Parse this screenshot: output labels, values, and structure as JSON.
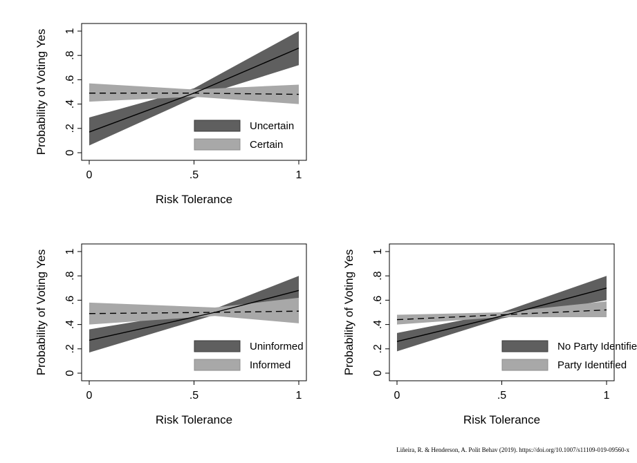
{
  "colors": {
    "dark_band": "#5f5f5f",
    "light_band": "#a8a8a8",
    "line": "#000000",
    "frame": "#000000"
  },
  "credit": "Liñeira, R. & Henderson, A. Polit Behav (2019). https://doi.org/10.1007/s11109-019-09560-x",
  "chart_data": [
    {
      "type": "line",
      "xlabel": "Risk Tolerance",
      "ylabel": "Probability of Voting Yes",
      "xlim": [
        0,
        1
      ],
      "ylim": [
        0,
        1
      ],
      "xticks": [
        "0",
        ".5",
        "1"
      ],
      "yticks": [
        "0",
        ".2",
        ".4",
        ".6",
        ".8",
        "1"
      ],
      "legend_position": "bottom-right",
      "series": [
        {
          "name": "Uncertain",
          "style": "solid",
          "band": "dark",
          "x": [
            0,
            0.5,
            1
          ],
          "y": [
            0.17,
            0.49,
            0.86
          ],
          "lower": [
            0.06,
            0.45,
            0.72
          ],
          "upper": [
            0.29,
            0.53,
            1.0
          ]
        },
        {
          "name": "Certain",
          "style": "dashed",
          "band": "light",
          "x": [
            0,
            0.5,
            1
          ],
          "y": [
            0.49,
            0.49,
            0.48
          ],
          "lower": [
            0.42,
            0.46,
            0.4
          ],
          "upper": [
            0.57,
            0.52,
            0.56
          ]
        }
      ]
    },
    {
      "type": "line",
      "xlabel": "Risk Tolerance",
      "ylabel": "Probability of Voting Yes",
      "xlim": [
        0,
        1
      ],
      "ylim": [
        0,
        1
      ],
      "xticks": [
        "0",
        ".5",
        "1"
      ],
      "yticks": [
        "0",
        ".2",
        ".4",
        ".6",
        ".8",
        "1"
      ],
      "legend_position": "bottom-right",
      "series": [
        {
          "name": "Uninformed",
          "style": "solid",
          "band": "dark",
          "x": [
            0,
            0.6,
            1
          ],
          "y": [
            0.27,
            0.5,
            0.68
          ],
          "lower": [
            0.17,
            0.48,
            0.57
          ],
          "upper": [
            0.36,
            0.53,
            0.8
          ]
        },
        {
          "name": "Informed",
          "style": "dashed",
          "band": "light",
          "x": [
            0,
            0.6,
            1
          ],
          "y": [
            0.49,
            0.5,
            0.51
          ],
          "lower": [
            0.4,
            0.47,
            0.41
          ],
          "upper": [
            0.58,
            0.54,
            0.62
          ]
        }
      ]
    },
    {
      "type": "line",
      "xlabel": "Risk Tolerance",
      "ylabel": "Probability of Voting Yes",
      "xlim": [
        0,
        1
      ],
      "ylim": [
        0,
        1
      ],
      "xticks": [
        "0",
        ".5",
        "1"
      ],
      "yticks": [
        "0",
        ".2",
        ".4",
        ".6",
        ".8",
        "1"
      ],
      "legend_position": "bottom-right",
      "series": [
        {
          "name": "No Party Identified",
          "style": "solid",
          "band": "dark",
          "x": [
            0,
            0.5,
            1
          ],
          "y": [
            0.26,
            0.47,
            0.7
          ],
          "lower": [
            0.18,
            0.45,
            0.6
          ],
          "upper": [
            0.33,
            0.5,
            0.8
          ]
        },
        {
          "name": "Party Identified",
          "style": "dashed",
          "band": "light",
          "x": [
            0,
            0.5,
            1
          ],
          "y": [
            0.44,
            0.48,
            0.52
          ],
          "lower": [
            0.4,
            0.46,
            0.46
          ],
          "upper": [
            0.48,
            0.5,
            0.59
          ]
        }
      ]
    }
  ]
}
